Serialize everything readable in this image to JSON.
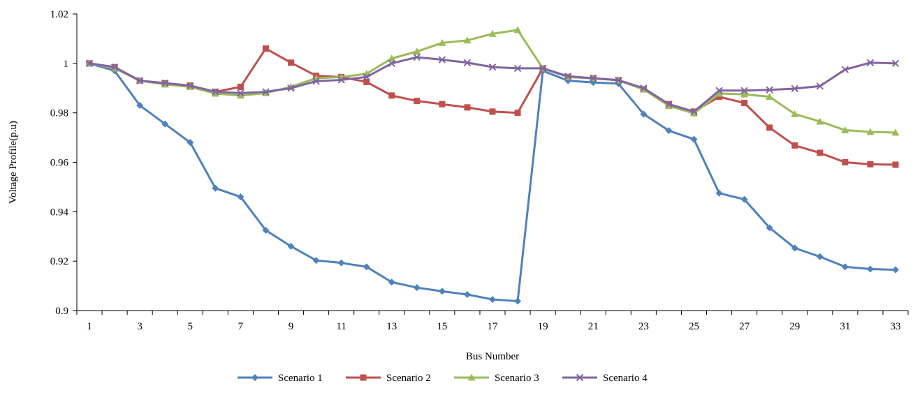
{
  "chart_data": {
    "type": "line",
    "title": "",
    "xlabel": "Bus Number",
    "ylabel": "Voltage Profile(p.u)",
    "ylim": [
      0.9,
      1.02
    ],
    "yticks": [
      0.9,
      0.92,
      0.94,
      0.96,
      0.98,
      1.0,
      1.02
    ],
    "ytick_labels": [
      "0.9",
      "0.92",
      "0.94",
      "0.96",
      "0.98",
      "1",
      "1.02"
    ],
    "x": [
      1,
      2,
      3,
      4,
      5,
      6,
      7,
      8,
      9,
      10,
      11,
      12,
      13,
      14,
      15,
      16,
      17,
      18,
      19,
      20,
      21,
      22,
      23,
      24,
      25,
      26,
      27,
      28,
      29,
      30,
      31,
      32,
      33
    ],
    "xtick_labels": [
      "1",
      "3",
      "5",
      "7",
      "9",
      "11",
      "13",
      "15",
      "17",
      "19",
      "21",
      "23",
      "25",
      "27",
      "29",
      "31",
      "33"
    ],
    "grid": false,
    "legend_position": "bottom",
    "series": [
      {
        "name": "Scenario 1",
        "color": "#4f81bd",
        "marker": "diamond",
        "values": [
          1.0,
          0.997,
          0.983,
          0.9755,
          0.968,
          0.9495,
          0.946,
          0.9325,
          0.926,
          0.9203,
          0.9193,
          0.9177,
          0.9115,
          0.9093,
          0.9078,
          0.9065,
          0.9045,
          0.9038,
          0.997,
          0.993,
          0.9923,
          0.9918,
          0.9795,
          0.9728,
          0.9693,
          0.9475,
          0.945,
          0.9335,
          0.9253,
          0.9218,
          0.9177,
          0.9168,
          0.9165
        ]
      },
      {
        "name": "Scenario 2",
        "color": "#c0504d",
        "marker": "square",
        "values": [
          1.0,
          0.9985,
          0.993,
          0.992,
          0.991,
          0.9885,
          0.9905,
          1.006,
          1.0003,
          0.995,
          0.9945,
          0.9925,
          0.987,
          0.9848,
          0.9835,
          0.9822,
          0.9805,
          0.98,
          0.998,
          0.9945,
          0.994,
          0.9932,
          0.9895,
          0.9835,
          0.9805,
          0.9865,
          0.984,
          0.974,
          0.9668,
          0.9638,
          0.96,
          0.9592,
          0.959
        ]
      },
      {
        "name": "Scenario 3",
        "color": "#9bbb59",
        "marker": "triangle",
        "values": [
          1.0,
          0.998,
          0.993,
          0.9915,
          0.9905,
          0.9878,
          0.987,
          0.988,
          0.9905,
          0.994,
          0.9945,
          0.9958,
          1.002,
          1.0048,
          1.0083,
          1.0093,
          1.012,
          1.0135,
          0.998,
          0.9945,
          0.994,
          0.9932,
          0.9895,
          0.9828,
          0.9798,
          0.9878,
          0.9875,
          0.9865,
          0.9795,
          0.9765,
          0.973,
          0.9723,
          0.972
        ]
      },
      {
        "name": "Scenario 4",
        "color": "#8064a2",
        "marker": "x",
        "values": [
          1.0,
          0.9985,
          0.993,
          0.992,
          0.991,
          0.9885,
          0.988,
          0.9885,
          0.99,
          0.9928,
          0.9933,
          0.9945,
          1.0,
          1.0025,
          1.0015,
          1.0003,
          0.9985,
          0.998,
          0.998,
          0.9948,
          0.994,
          0.9932,
          0.99,
          0.9835,
          0.9805,
          0.989,
          0.989,
          0.9893,
          0.9898,
          0.9908,
          0.9975,
          1.0003,
          1.0
        ]
      }
    ]
  }
}
